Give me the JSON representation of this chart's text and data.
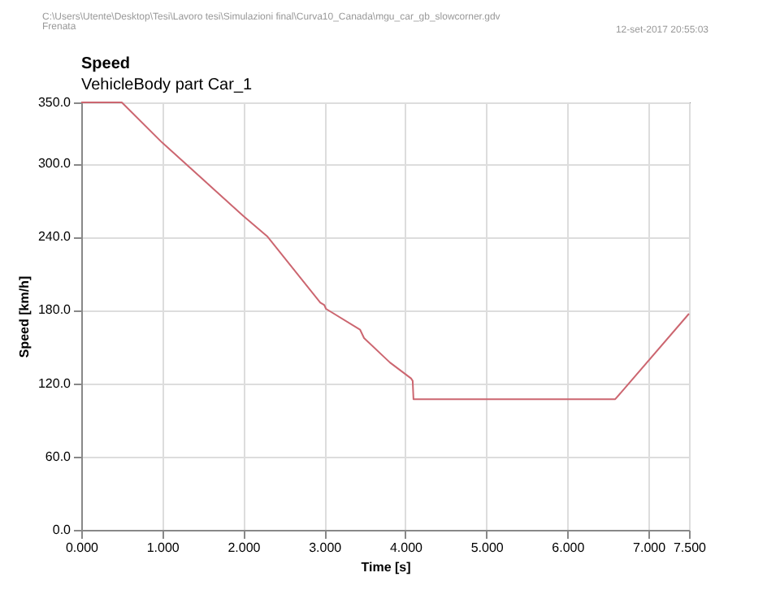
{
  "chart_data": {
    "type": "line",
    "title": "Speed",
    "subtitle": "VehicleBody part Car_1",
    "xlabel": "Time [s]",
    "ylabel": "Speed [km/h]",
    "annotations": [
      "C:\\Users\\Utente\\Desktop\\Tesi\\Lavoro tesi\\Simulazioni final\\Curva10_Canada\\mgu_car_gb_slowcorner.gdv",
      "Frenata",
      "12-set-2017   20:55:03"
    ],
    "series": [
      {
        "color": "#cc6670",
        "x": [
          0,
          0.5,
          1.0,
          2.0,
          2.3,
          2.95,
          3.0,
          3.02,
          3.44,
          3.49,
          3.81,
          4.07,
          4.09,
          4.1,
          6.59,
          7.5
        ],
        "values": [
          350,
          350,
          317,
          257,
          240,
          186,
          184,
          181,
          164,
          157,
          137,
          124,
          122,
          107,
          107,
          177
        ]
      }
    ],
    "xlim": [
      0,
      7.5
    ],
    "ylim": [
      0,
      350
    ],
    "xticks": [
      {
        "value": 0,
        "label": "0.000"
      },
      {
        "value": 1,
        "label": "1.000"
      },
      {
        "value": 2,
        "label": "2.000"
      },
      {
        "value": 3,
        "label": "3.000"
      },
      {
        "value": 4,
        "label": "4.000"
      },
      {
        "value": 5,
        "label": "5.000"
      },
      {
        "value": 6,
        "label": "6.000"
      },
      {
        "value": 7,
        "label": "7.000"
      },
      {
        "value": 7.5,
        "label": "7.500"
      }
    ],
    "yticks": [
      {
        "value": 0,
        "label": "0.0"
      },
      {
        "value": 60,
        "label": "60.0"
      },
      {
        "value": 120,
        "label": "120.0"
      },
      {
        "value": 180,
        "label": "180.0"
      },
      {
        "value": 240,
        "label": "240.0"
      },
      {
        "value": 300,
        "label": "300.0"
      },
      {
        "value": 350,
        "label": "350.0"
      }
    ],
    "grid": true,
    "line_style": "solid",
    "marker": "none"
  }
}
